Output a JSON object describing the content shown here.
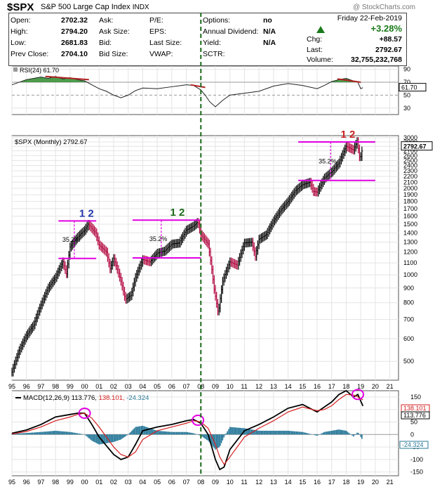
{
  "header": {
    "symbol": "$SPX",
    "name": "S&P 500 Large Cap Index",
    "exchange": "INDX",
    "brand": "@ StockCharts.com"
  },
  "quote": {
    "open_label": "Open:",
    "open": "2702.32",
    "high_label": "High:",
    "high": "2794.20",
    "low_label": "Low:",
    "low": "2681.83",
    "prev_label": "Prev Close:",
    "prev": "2704.10",
    "ask_label": "Ask:",
    "ask_size_label": "Ask Size:",
    "bid_label": "Bid:",
    "bid_size_label": "Bid Size:",
    "pe_label": "P/E:",
    "eps_label": "EPS:",
    "last_size_label": "Last Size:",
    "vwap_label": "VWAP:",
    "options_label": "Options:",
    "options": "no",
    "div_label": "Annual Dividend:",
    "div": "N/A",
    "yield_label": "Yield:",
    "yield": "N/A",
    "sctr_label": "SCTR:",
    "date": "Friday 22-Feb-2019",
    "change_pct": "+3.28%",
    "chg_label": "Chg:",
    "chg": "+88.57",
    "last_label": "Last:",
    "last": "2792.67",
    "volume_label": "Volume:",
    "volume": "32,755,232,768",
    "up_color": "#1a7a1a"
  },
  "chart_data": [
    {
      "type": "line",
      "title": "RSI(24) 61.70",
      "current": "61.70",
      "yticks": [
        "90",
        "70",
        "50",
        "30"
      ],
      "ylim": [
        20,
        95
      ],
      "x": [
        1995.0,
        1996.0,
        1997.0,
        1997.5,
        1998.0,
        1998.5,
        1999.0,
        1999.5,
        2000.0,
        2000.5,
        2001.0,
        2001.5,
        2002.0,
        2002.5,
        2003.0,
        2003.5,
        2004.0,
        2005.0,
        2006.0,
        2007.0,
        2007.5,
        2008.0,
        2008.3,
        2008.6,
        2009.0,
        2009.5,
        2010.0,
        2011.0,
        2012.0,
        2013.0,
        2014.0,
        2015.0,
        2016.0,
        2016.5,
        2017.0,
        2017.5,
        2018.0,
        2018.5,
        2018.8,
        2019.0,
        2019.15
      ],
      "values": [
        66,
        74,
        78,
        76,
        79,
        75,
        77,
        74,
        72,
        66,
        60,
        56,
        50,
        46,
        50,
        57,
        61,
        60,
        63,
        66,
        65,
        58,
        50,
        40,
        32,
        42,
        50,
        53,
        56,
        64,
        68,
        65,
        60,
        65,
        71,
        74,
        76,
        72,
        70,
        60,
        61.7
      ],
      "overbought_color": "#2e8b2e",
      "trend_color": "#b22222"
    },
    {
      "type": "bar",
      "title": "$SPX (Monthly) 2792.67",
      "last_label": "2792.67",
      "yscale": "log",
      "yticks": [
        "500",
        "600",
        "700",
        "800",
        "900",
        "1000",
        "1100",
        "1200",
        "1300",
        "1400",
        "1500",
        "1600",
        "1700",
        "1800",
        "1900",
        "2000",
        "2100",
        "2200",
        "2300",
        "2400",
        "2500",
        "2600",
        "2700",
        "2800",
        "2900",
        "3000"
      ],
      "ylim": [
        430,
        3050
      ],
      "x": [
        1995.0,
        1995.5,
        1996.0,
        1996.5,
        1997.0,
        1997.5,
        1998.0,
        1998.5,
        1998.75,
        1999.0,
        1999.5,
        2000.0,
        2000.25,
        2000.5,
        2000.75,
        2001.0,
        2001.5,
        2001.75,
        2002.0,
        2002.5,
        2002.8,
        2003.2,
        2003.5,
        2004.0,
        2004.5,
        2005.0,
        2005.5,
        2006.0,
        2006.5,
        2007.0,
        2007.5,
        2007.8,
        2008.0,
        2008.5,
        2008.9,
        2009.2,
        2009.5,
        2010.0,
        2010.5,
        2011.0,
        2011.5,
        2011.75,
        2012.0,
        2012.5,
        2013.0,
        2013.5,
        2014.0,
        2014.5,
        2015.0,
        2015.5,
        2015.75,
        2016.0,
        2016.5,
        2017.0,
        2017.5,
        2018.0,
        2018.5,
        2018.75,
        2018.95,
        2019.15
      ],
      "values": [
        459,
        545,
        615,
        670,
        786,
        900,
        980,
        1110,
        1010,
        1250,
        1350,
        1430,
        1500,
        1450,
        1400,
        1270,
        1200,
        1050,
        1140,
        950,
        820,
        850,
        980,
        1130,
        1110,
        1190,
        1210,
        1280,
        1290,
        1430,
        1480,
        1530,
        1380,
        1280,
        900,
        730,
        950,
        1110,
        1080,
        1290,
        1300,
        1160,
        1330,
        1380,
        1540,
        1680,
        1800,
        1960,
        2060,
        2100,
        1950,
        1940,
        2170,
        2280,
        2450,
        2800,
        2720,
        2910,
        2510,
        2792.67
      ],
      "resistance": [
        {
          "label": "35.2%",
          "marks": "1 2",
          "color": "#2233aa",
          "low": 1140,
          "high": 1540,
          "start": 1998.2,
          "end": 2000.8
        },
        {
          "label": "35.2%",
          "marks": "1 2",
          "color": "#1a6b1a",
          "low": 1145,
          "high": 1550,
          "start": 2003.3,
          "end": 2008.0
        },
        {
          "label": "35.2%",
          "marks": "1 2",
          "color": "#cc2222",
          "low": 2130,
          "high": 2900,
          "start": 2014.7,
          "end": 2020.0
        }
      ],
      "up_bar_color": "#000000",
      "down_bar_color": "#b0003a",
      "band_color": "#e100e1",
      "marker_line_color": "#1a6b1a",
      "xticks": [
        "95",
        "96",
        "97",
        "98",
        "99",
        "00",
        "01",
        "02",
        "03",
        "04",
        "05",
        "06",
        "07",
        "08",
        "09",
        "10",
        "11",
        "12",
        "13",
        "14",
        "15",
        "16",
        "17",
        "18",
        "19",
        "20",
        "21"
      ]
    },
    {
      "type": "line",
      "title": "MACD(12,26,9) 113.776, 138.101, -24.324",
      "macd_label": "113.776",
      "signal_label": "138.101",
      "hist_label": "-24.324",
      "yticks": [
        "150",
        "100",
        "50",
        "0",
        "-50",
        "-100",
        "-150"
      ],
      "ylim": [
        -165,
        175
      ],
      "x": [
        1995.0,
        1996.0,
        1997.0,
        1998.0,
        1999.0,
        1999.5,
        2000.0,
        2000.5,
        2001.0,
        2001.5,
        2002.0,
        2002.5,
        2003.0,
        2003.5,
        2004.0,
        2005.0,
        2006.0,
        2007.0,
        2007.5,
        2008.0,
        2008.5,
        2009.0,
        2009.3,
        2009.6,
        2010.0,
        2011.0,
        2012.0,
        2013.0,
        2014.0,
        2015.0,
        2016.0,
        2016.5,
        2017.0,
        2017.5,
        2018.0,
        2018.5,
        2018.8,
        2019.15
      ],
      "series": [
        {
          "name": "MACD",
          "color": "#000000",
          "values": [
            5,
            18,
            40,
            70,
            80,
            85,
            85,
            40,
            -10,
            -45,
            -80,
            -100,
            -90,
            -40,
            15,
            30,
            40,
            55,
            60,
            45,
            0,
            -100,
            -140,
            -130,
            -60,
            15,
            40,
            70,
            105,
            120,
            90,
            110,
            130,
            160,
            175,
            150,
            160,
            113.776
          ]
        },
        {
          "name": "Signal",
          "color": "#d42020",
          "values": [
            2,
            12,
            30,
            55,
            70,
            80,
            85,
            65,
            30,
            -10,
            -50,
            -80,
            -90,
            -70,
            -20,
            15,
            30,
            45,
            55,
            50,
            25,
            -40,
            -90,
            -120,
            -90,
            -10,
            25,
            55,
            90,
            110,
            95,
            100,
            115,
            140,
            160,
            158,
            150,
            138.101
          ]
        },
        {
          "name": "Histogram",
          "color": "#2a7a9a",
          "values": [
            3,
            6,
            10,
            15,
            10,
            5,
            0,
            -25,
            -40,
            -35,
            -30,
            -20,
            0,
            30,
            35,
            15,
            10,
            10,
            5,
            -5,
            -25,
            -60,
            -50,
            -10,
            30,
            25,
            15,
            15,
            15,
            10,
            -5,
            10,
            15,
            20,
            15,
            -8,
            10,
            -24.324
          ]
        }
      ]
    }
  ]
}
